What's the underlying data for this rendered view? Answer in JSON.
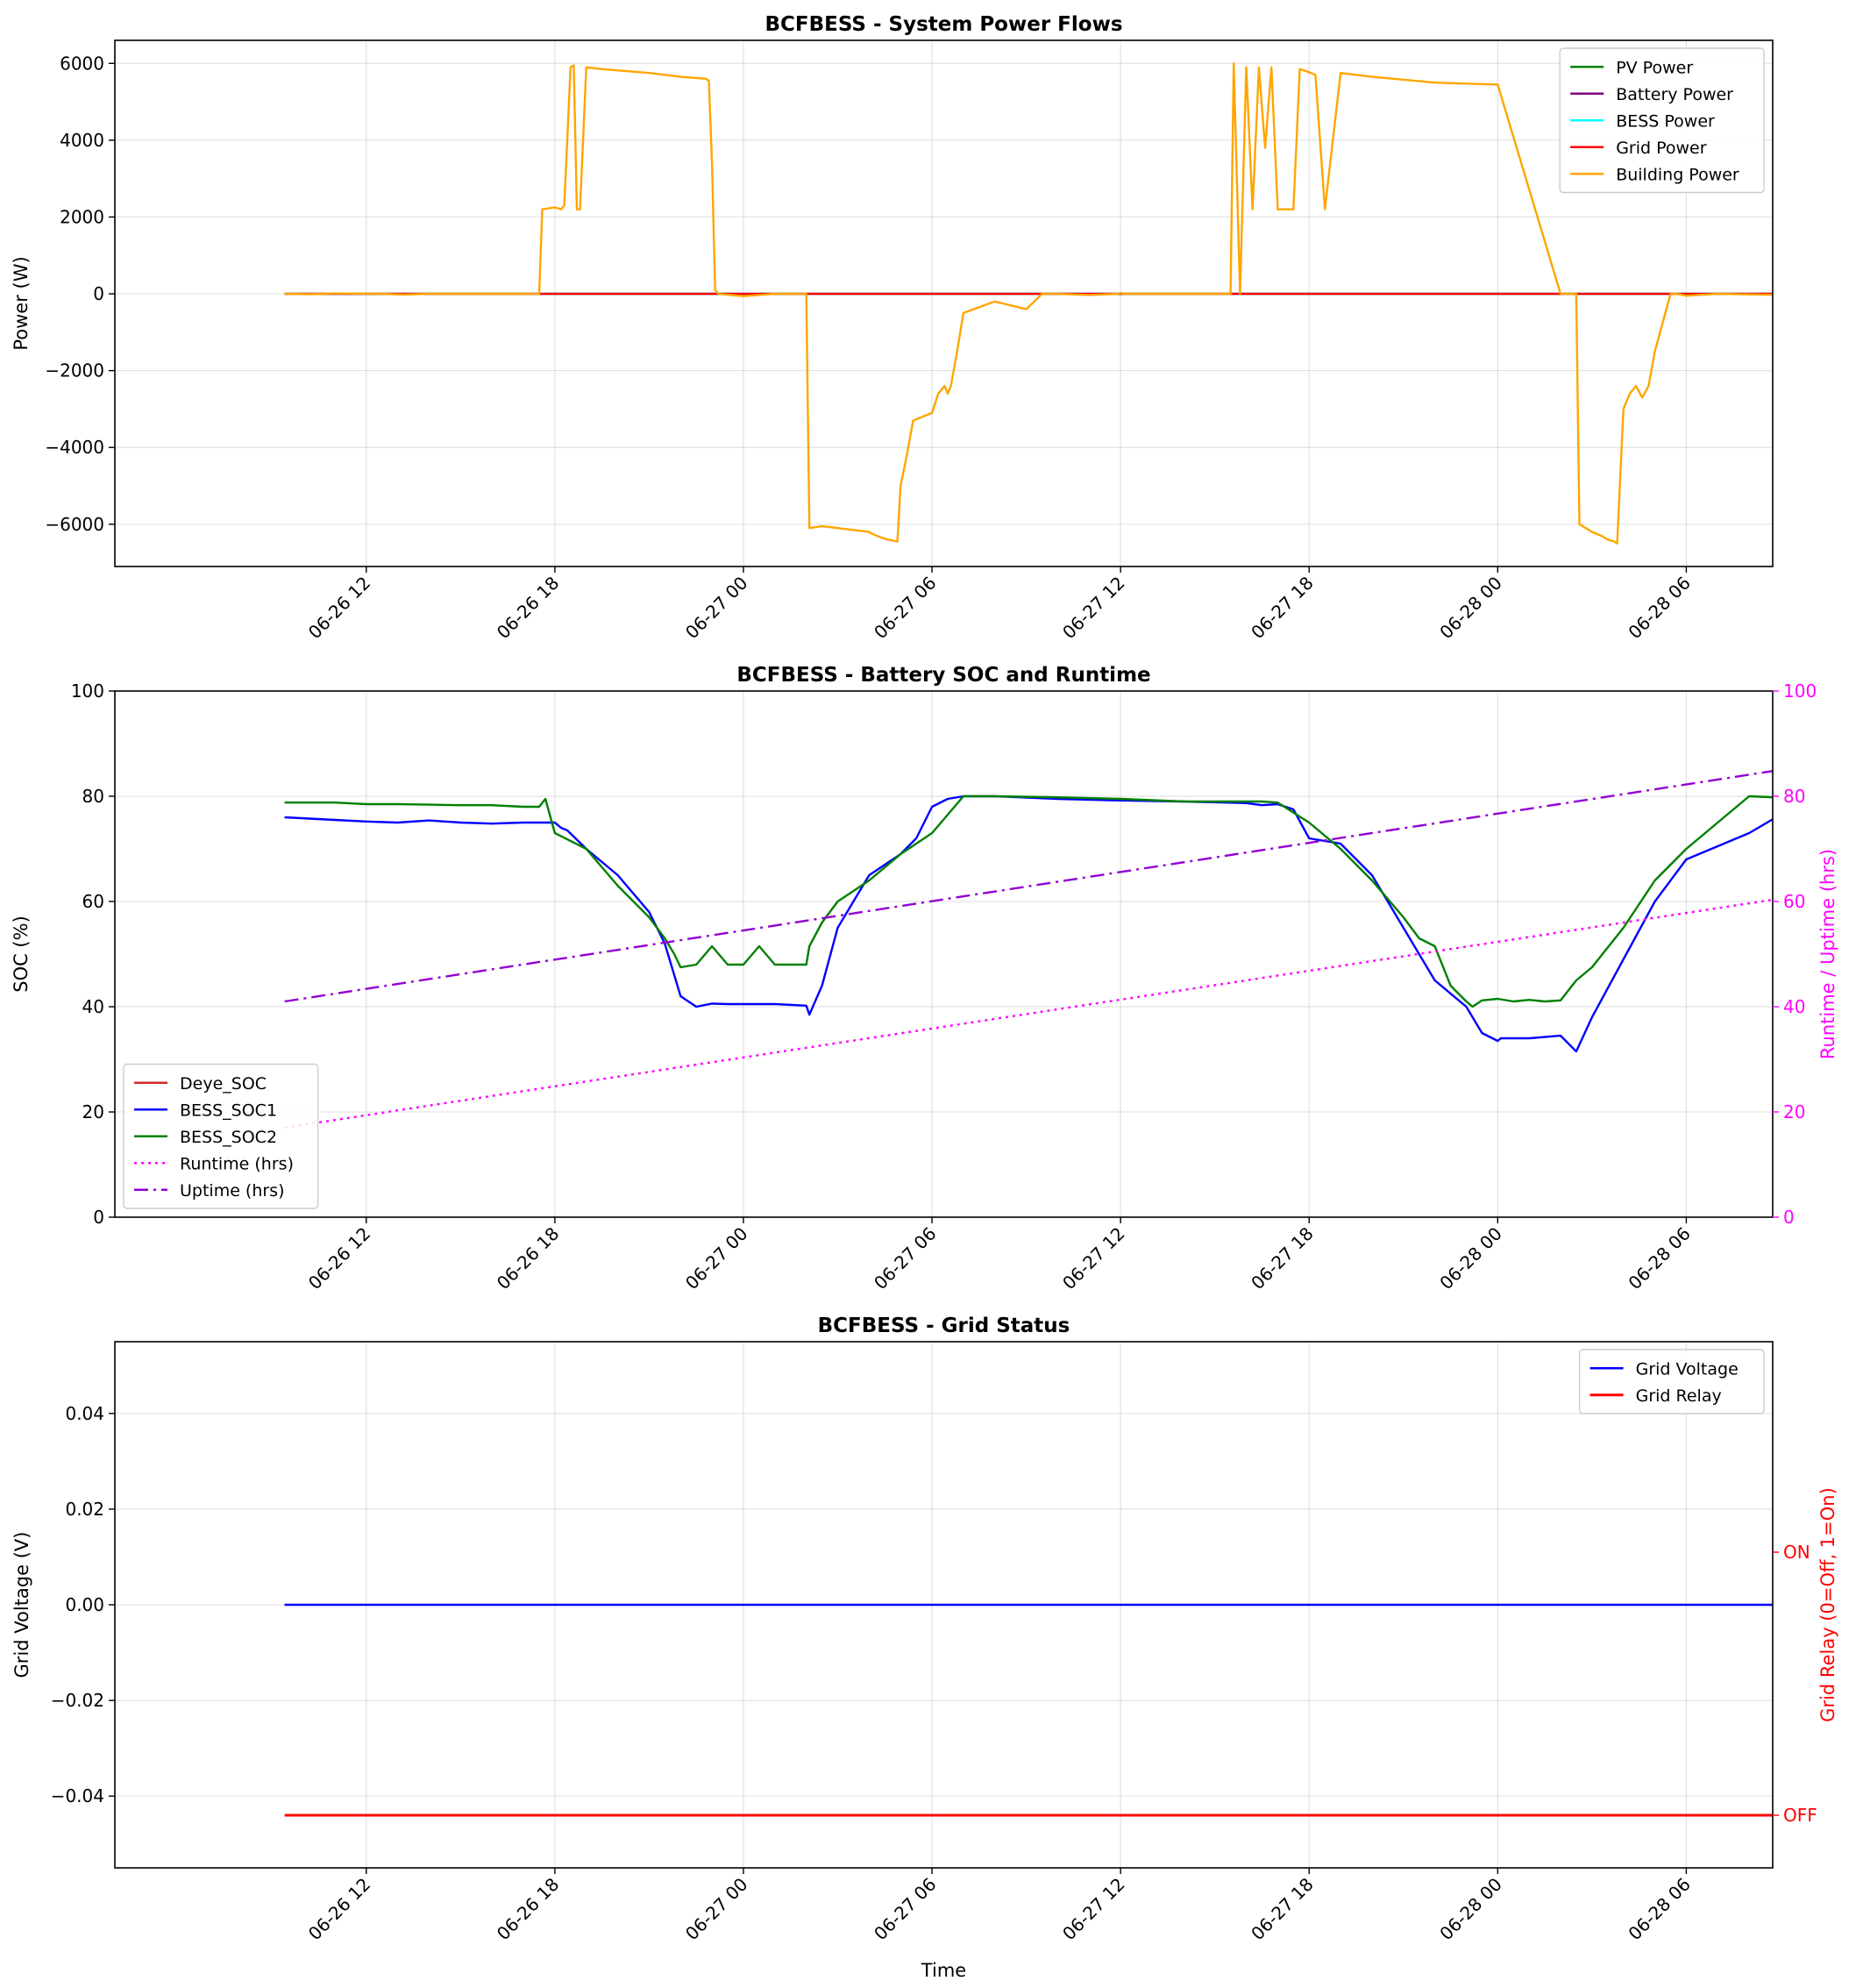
{
  "chart_data": [
    {
      "type": "line",
      "title": "BCFBESS - System Power Flows",
      "ylabel": "Power (W)",
      "ylim": [
        -7100,
        6600
      ],
      "yticks": [
        -6000,
        -4000,
        -2000,
        0,
        2000,
        4000,
        6000
      ],
      "ytick_labels": [
        "−6000",
        "−4000",
        "−2000",
        "0",
        "2000",
        "4000",
        "6000"
      ],
      "xlim_hours": [
        -8.0,
        44.75
      ],
      "xticks_hours": [
        0,
        6,
        12,
        18,
        24,
        30,
        36,
        42
      ],
      "xtick_labels": [
        "06-26 12",
        "06-26 18",
        "06-27 00",
        "06-27 06",
        "06-27 12",
        "06-27 18",
        "06-28 00",
        "06-28 06"
      ],
      "grid": true,
      "legend_position": "top-right",
      "series": [
        {
          "name": "PV Power",
          "color": "#008000",
          "x": [
            -2.6,
            49.3
          ],
          "y": [
            0,
            0
          ]
        },
        {
          "name": "Battery Power",
          "color": "#800080",
          "x": [
            -2.6,
            49.3
          ],
          "y": [
            0,
            0
          ]
        },
        {
          "name": "BESS Power",
          "color": "#00ffff",
          "x": [
            -2.6,
            49.3
          ],
          "y": [
            0,
            0
          ]
        },
        {
          "name": "Grid Power",
          "color": "#ff0000",
          "x": [
            -2.6,
            49.3
          ],
          "y": [
            0,
            0
          ]
        },
        {
          "name": "Building Power",
          "color": "#ffa500",
          "x": [
            -2.6,
            -1.8,
            -1.0,
            0.5,
            1.2,
            2.0,
            5.5,
            5.6,
            6.0,
            6.2,
            6.3,
            6.5,
            6.6,
            6.7,
            6.8,
            7.0,
            7.5,
            9.0,
            10.0,
            10.8,
            10.9,
            11.0,
            11.1,
            11.2,
            12.0,
            13.0,
            14.0,
            14.1,
            14.5,
            15.0,
            16.0,
            16.1,
            16.4,
            16.6,
            16.9,
            17.0,
            17.2,
            17.4,
            18.0,
            18.2,
            18.4,
            18.5,
            18.6,
            18.8,
            19.0,
            20.0,
            21.0,
            21.5,
            22.0,
            23.0,
            23.9,
            24.0,
            24.1,
            25.0,
            26.0,
            27.0,
            27.5,
            27.6,
            27.8,
            28.0,
            28.2,
            28.4,
            28.6,
            28.8,
            29.0,
            29.2,
            29.5,
            29.7,
            29.9,
            30.2,
            30.5,
            31.0,
            32.0,
            34.0,
            36.0,
            38.0,
            38.5,
            38.6,
            38.8,
            39.0,
            39.3,
            39.5,
            39.7,
            39.8,
            40.0,
            40.2,
            40.4,
            40.6,
            40.8,
            41.0,
            41.2,
            41.5,
            41.7,
            42.0,
            43.0,
            45.0,
            47.0,
            49.3
          ],
          "y": [
            0,
            -10,
            10,
            0,
            -20,
            0,
            0,
            2200,
            2250,
            2200,
            2300,
            5900,
            5950,
            2200,
            2200,
            5900,
            5850,
            5750,
            5650,
            5600,
            5550,
            3400,
            100,
            0,
            -60,
            0,
            0,
            -6100,
            -6050,
            -6100,
            -6200,
            -6250,
            -6350,
            -6400,
            -6450,
            -5000,
            -4200,
            -3300,
            -3100,
            -2600,
            -2400,
            -2600,
            -2400,
            -1500,
            -500,
            -200,
            -400,
            0,
            0,
            -30,
            0,
            20,
            0,
            0,
            0,
            0,
            0,
            6000,
            0,
            5900,
            2200,
            5900,
            3800,
            5900,
            2200,
            2200,
            2200,
            5850,
            5800,
            5700,
            2200,
            5750,
            5650,
            5500,
            5450,
            0,
            0,
            -6000,
            -6100,
            -6200,
            -6300,
            -6400,
            -6450,
            -6500,
            -3000,
            -2600,
            -2400,
            -2700,
            -2400,
            -1500,
            -900,
            0,
            0,
            -50,
            0,
            -30,
            0,
            0
          ]
        }
      ]
    },
    {
      "type": "line",
      "title": "BCFBESS - Battery SOC and Runtime",
      "ylabel": "SOC (%)",
      "ylim": [
        0,
        100
      ],
      "yticks": [
        0,
        20,
        40,
        60,
        80,
        100
      ],
      "ylabel_right": "Runtime / Uptime (hrs)",
      "ylim_right": [
        0,
        100
      ],
      "yticks_right": [
        0,
        20,
        40,
        60,
        80,
        100
      ],
      "right_axis_color": "#ff00ff",
      "xlim_hours": [
        -8.0,
        44.75
      ],
      "xticks_hours": [
        0,
        6,
        12,
        18,
        24,
        30,
        36,
        42
      ],
      "xtick_labels": [
        "06-26 12",
        "06-26 18",
        "06-27 00",
        "06-27 06",
        "06-27 12",
        "06-27 18",
        "06-28 00",
        "06-28 06"
      ],
      "grid": true,
      "legend_position": "bottom-left",
      "series": [
        {
          "name": "Deye_SOC",
          "color": "#d62728",
          "axis": "left",
          "x": [],
          "y": []
        },
        {
          "name": "BESS_SOC1",
          "color": "#0000ff",
          "axis": "left",
          "x": [
            -2.6,
            -1.0,
            0.0,
            1.0,
            2.0,
            3.0,
            4.0,
            5.0,
            6.0,
            6.2,
            6.4,
            7.0,
            8.0,
            9.0,
            9.5,
            10.0,
            10.5,
            11.0,
            11.5,
            12.0,
            13.0,
            14.0,
            14.1,
            14.5,
            15.0,
            16.0,
            17.0,
            17.5,
            18.0,
            18.5,
            19.0,
            20.0,
            22.0,
            24.0,
            26.0,
            28.0,
            28.5,
            29.0,
            29.5,
            30.0,
            31.0,
            32.0,
            32.5,
            33.0,
            34.0,
            35.0,
            35.5,
            36.0,
            36.1,
            36.5,
            37.0,
            38.0,
            38.5,
            39.0,
            40.0,
            41.0,
            42.0,
            44.0,
            46.0,
            48.0,
            49.3
          ],
          "y": [
            76,
            75.5,
            75.2,
            75,
            75.4,
            75,
            74.8,
            75,
            75,
            74,
            73.5,
            70,
            65,
            58,
            52,
            42,
            40,
            40.6,
            40.5,
            40.5,
            40.5,
            40.2,
            38.5,
            44,
            55,
            65,
            69,
            72,
            78,
            79.5,
            80,
            80,
            79.5,
            79.2,
            79.0,
            78.7,
            78.3,
            78.5,
            77.5,
            72,
            71,
            65,
            60,
            55,
            45,
            40,
            35,
            33.5,
            34,
            34,
            34,
            34.5,
            31.5,
            38,
            49,
            60,
            68,
            73,
            80,
            80,
            80
          ]
        },
        {
          "name": "BESS_SOC2",
          "color": "#008000",
          "axis": "left",
          "x": [
            -2.6,
            -1.0,
            0.0,
            1.0,
            2.0,
            3.0,
            4.0,
            5.0,
            5.5,
            5.7,
            6.0,
            7.0,
            8.0,
            9.0,
            9.5,
            9.8,
            10.0,
            10.5,
            11.0,
            11.5,
            12.0,
            12.5,
            13.0,
            14.0,
            14.1,
            14.5,
            15.0,
            16.0,
            17.0,
            18.0,
            19.0,
            20.0,
            22.0,
            24.0,
            26.0,
            28.0,
            28.5,
            29.0,
            30.0,
            31.0,
            32.0,
            33.0,
            33.5,
            34.0,
            34.5,
            35.0,
            35.2,
            35.5,
            36.0,
            36.5,
            37.0,
            37.5,
            38.0,
            38.5,
            39.0,
            40.0,
            41.0,
            42.0,
            44.0,
            46.0,
            48.0,
            49.3
          ],
          "y": [
            78.8,
            78.8,
            78.5,
            78.5,
            78.4,
            78.3,
            78.3,
            78,
            78,
            79.5,
            73,
            70,
            63,
            57,
            53,
            50,
            47.5,
            48,
            51.5,
            48,
            48,
            51.5,
            48,
            48,
            51.5,
            56,
            60,
            64,
            69,
            73,
            80,
            80,
            79.8,
            79.5,
            79.0,
            79.0,
            79.0,
            78.8,
            75,
            70,
            64,
            57,
            53,
            51.5,
            44,
            41,
            40,
            41.2,
            41.5,
            41,
            41.3,
            41,
            41.2,
            45,
            47.5,
            55,
            64,
            70,
            80,
            79.5,
            79,
            79
          ]
        },
        {
          "name": "Runtime (hrs)",
          "color": "#ff00ff",
          "axis": "right",
          "dash": "dotted",
          "x": [
            -2.6,
            49.3
          ],
          "y": [
            17,
            64.5
          ]
        },
        {
          "name": "Uptime (hrs)",
          "color": "#9400d3",
          "axis": "right",
          "dash": "dashdot",
          "x": [
            -2.6,
            49.3
          ],
          "y": [
            41,
            89
          ]
        }
      ]
    },
    {
      "type": "line",
      "title": "BCFBESS - Grid Status",
      "xlabel": "Time",
      "ylabel": "Grid Voltage (V)",
      "ylim": [
        -0.055,
        0.055
      ],
      "yticks": [
        -0.04,
        -0.02,
        0.0,
        0.02,
        0.04
      ],
      "ytick_labels": [
        "−0.04",
        "−0.02",
        "0.00",
        "0.02",
        "0.04"
      ],
      "ylabel_right": "Grid Relay (0=Off, 1=On)",
      "right_axis_color": "#ff0000",
      "ylim_right": [
        -0.2,
        1.8
      ],
      "yticks_right": [
        0,
        1
      ],
      "ytick_labels_right": [
        "OFF",
        "ON"
      ],
      "xlim_hours": [
        -8.0,
        44.75
      ],
      "xticks_hours": [
        0,
        6,
        12,
        18,
        24,
        30,
        36,
        42
      ],
      "xtick_labels": [
        "06-26 12",
        "06-26 18",
        "06-27 00",
        "06-27 06",
        "06-27 12",
        "06-27 18",
        "06-28 00",
        "06-28 06"
      ],
      "grid": true,
      "legend_position": "top-right",
      "series": [
        {
          "name": "Grid Voltage",
          "color": "#0000ff",
          "axis": "left",
          "x": [
            -2.6,
            49.3
          ],
          "y": [
            0,
            0
          ]
        },
        {
          "name": "Grid Relay",
          "color": "#ff0000",
          "axis": "right",
          "width": 3,
          "x": [
            -2.6,
            49.3
          ],
          "y": [
            0,
            0
          ]
        }
      ]
    }
  ]
}
